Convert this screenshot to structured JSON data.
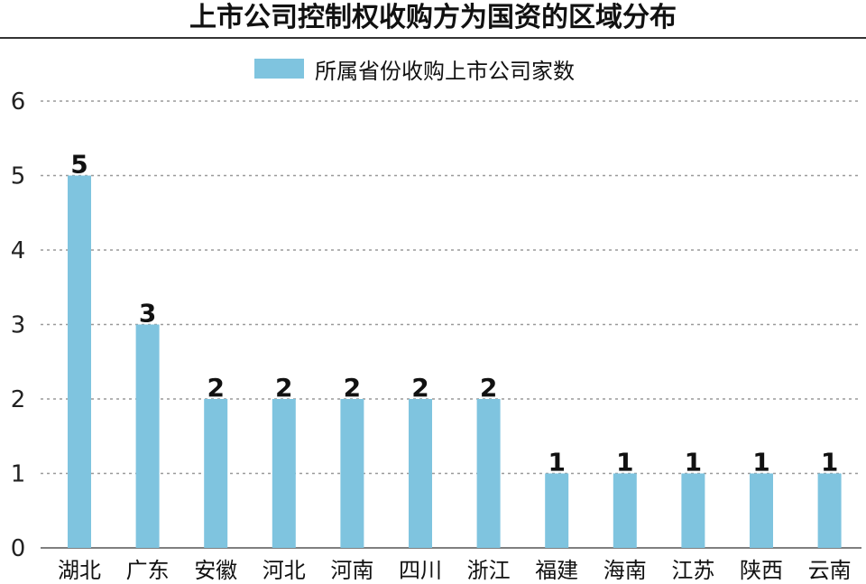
{
  "chart_data": {
    "type": "bar",
    "title": "上市公司控制权收购方为国资的区域分布",
    "categories": [
      "湖北",
      "广东",
      "安徽",
      "河北",
      "河南",
      "四川",
      "浙江",
      "福建",
      "海南",
      "江苏",
      "陕西",
      "云南"
    ],
    "series": [
      {
        "name": "所属省份收购上市公司家数",
        "values": [
          5,
          3,
          2,
          2,
          2,
          2,
          2,
          1,
          1,
          1,
          1,
          1
        ]
      }
    ],
    "data_labels": [
      "5",
      "3",
      "2",
      "2",
      "2",
      "2",
      "2",
      "1",
      "1",
      "1",
      "1",
      "1"
    ],
    "ylim": [
      0,
      6
    ],
    "yticks": [
      "0",
      "1",
      "2",
      "3",
      "4",
      "5",
      "6"
    ],
    "grid": true,
    "legend_position": "top-center",
    "bar_color": "#7fc4df",
    "xlabel": "",
    "ylabel": ""
  }
}
